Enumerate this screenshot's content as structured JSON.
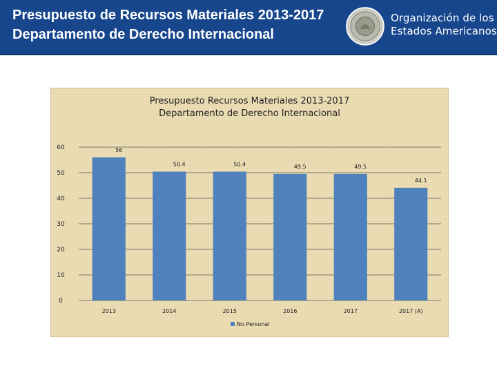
{
  "header": {
    "title": "Presupuesto de Recursos Materiales 2013-2017\nDepartamento de Derecho Internacional",
    "org_name": "Organización de los\nEstados Americanos",
    "seal_icon": "oas-seal-icon",
    "background_color": "#17468c"
  },
  "chart_data": {
    "type": "bar",
    "title": "Presupuesto Recursos Materiales 2013-2017\nDepartamento de Derecho Internacional",
    "categories": [
      "2013",
      "2014",
      "2015",
      "2016",
      "2017",
      "2017 (A)"
    ],
    "series": [
      {
        "name": "No Personal",
        "values": [
          56,
          50.4,
          50.4,
          49.5,
          49.5,
          44.1
        ],
        "labels": [
          "56",
          "50.4",
          "50.4",
          "49.5",
          "49.5",
          "44.1"
        ],
        "color": "#4f81bd"
      }
    ],
    "ylim": [
      0,
      60
    ],
    "yticks": [
      0,
      10,
      20,
      30,
      40,
      50,
      60
    ],
    "grid": true,
    "legend": "bottom",
    "background": "#e8d9ae"
  }
}
